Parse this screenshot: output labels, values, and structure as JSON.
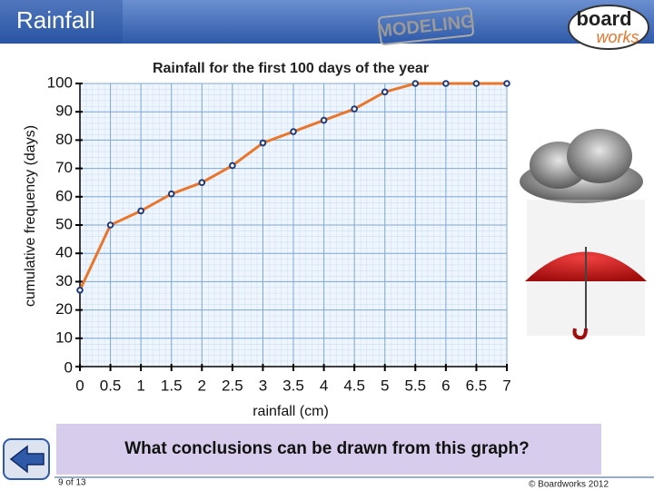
{
  "header": {
    "title": "Rainfall",
    "badge": "MODELING",
    "logo_top": "board",
    "logo_bottom": "works"
  },
  "question": "What conclusions can be drawn from this graph?",
  "footer": {
    "page": "9 of 13",
    "copyright": "© Boardworks 2012"
  },
  "chart_data": {
    "type": "line",
    "title": "Rainfall for the first 100 days of the year",
    "x_label": "rainfall (cm)",
    "y_label": "cumulative frequency (days)",
    "x": [
      0,
      0.5,
      1,
      1.5,
      2,
      2.5,
      3,
      3.5,
      4,
      4.5,
      5,
      5.5,
      6,
      6.5,
      7
    ],
    "series": [
      {
        "name": "cumulative frequency",
        "color": "#e8762c",
        "values": [
          27,
          50,
          55,
          61,
          65,
          71,
          79,
          83,
          87,
          91,
          97,
          100,
          100,
          100,
          100
        ]
      }
    ],
    "xlim": [
      0,
      7
    ],
    "ylim": [
      0,
      100
    ],
    "xticks": [
      0,
      0.5,
      1,
      1.5,
      2,
      2.5,
      3,
      3.5,
      4,
      4.5,
      5,
      5.5,
      6,
      6.5,
      7
    ],
    "yticks": [
      0,
      10,
      20,
      30,
      40,
      50,
      60,
      70,
      80,
      90,
      100
    ],
    "grid": true
  }
}
